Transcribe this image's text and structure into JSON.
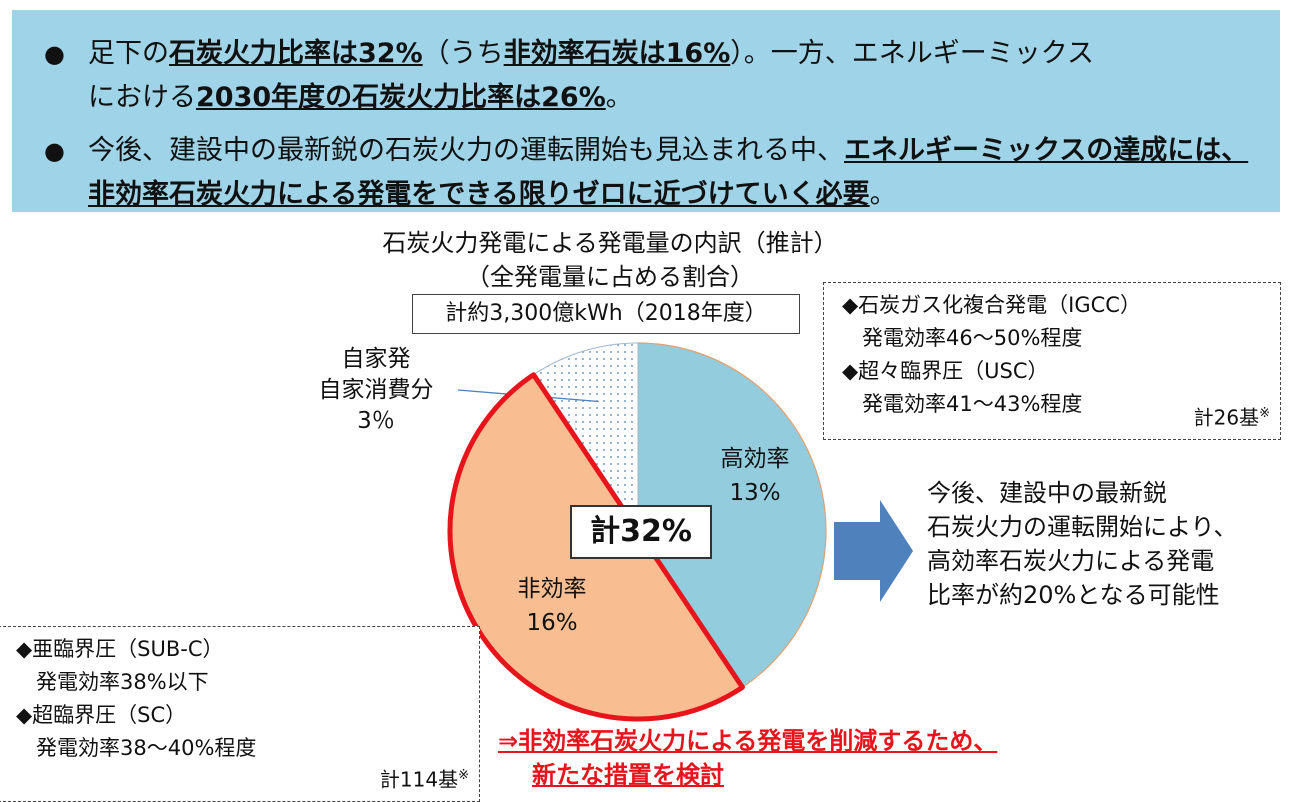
{
  "banner": {
    "bullet1": {
      "p1": "足下の",
      "b1": "石炭火力比率は32%",
      "p2": "（うち",
      "b2": "非効率石炭は16%",
      "p3": "）。一方、エネルギーミックス",
      "p4": "における",
      "b3": "2030年度の石炭火力比率は26%",
      "p5": "。"
    },
    "bullet2": {
      "p1": "今後、建設中の最新鋭の石炭火力の運転開始も見込まれる中、",
      "b1": "エネルギーミックスの達成には、非効率石炭火力による発電をできる限りゼロに近づけていく必要",
      "p2": "。"
    }
  },
  "chart_data": {
    "type": "pie",
    "title": "石炭火力発電による発電量の内訳（推計）",
    "subtitle": "（全発電量に占める割合）",
    "total_label": "計約3,300億kWh（2018年度）",
    "center_label": "計32%",
    "slices": [
      {
        "name": "高効率",
        "label": "13%",
        "value": 13,
        "color": "#93cddd"
      },
      {
        "name": "非効率",
        "label": "16%",
        "value": 16,
        "color": "#f8be92"
      },
      {
        "name_line1": "自家発",
        "name_line2": "自家消費分",
        "label": "3％",
        "value": 3,
        "color": "#ffffff"
      }
    ]
  },
  "high_eff_box": {
    "item1_name": "◆石炭ガス化複合発電（IGCC）",
    "item1_eff": "発電効率46～50%程度",
    "item2_name": "◆超々臨界圧（USC）",
    "item2_eff": "発電効率41～43%程度",
    "count": "計26基",
    "count_mark": "※"
  },
  "low_eff_box": {
    "item1_name": "◆亜臨界圧（SUB-C）",
    "item1_eff": "発電効率38%以下",
    "item2_name": "◆超臨界圧（SC）",
    "item2_eff": "発電効率38～40%程度",
    "count": "計114基",
    "count_mark": "※"
  },
  "outlook": {
    "line1": "今後、建設中の最新鋭",
    "line2": "石炭火力の運転開始により、",
    "line3": "高効率石炭火力による発電",
    "line4": "比率が約20%となる可能性"
  },
  "note": {
    "line1": "⇒非効率石炭火力による発電を削減するため、",
    "line2": "新たな措置を検討"
  },
  "colors": {
    "banner": "#9fd4e8",
    "arrow": "#4f81bd",
    "red": "#e8141b"
  }
}
